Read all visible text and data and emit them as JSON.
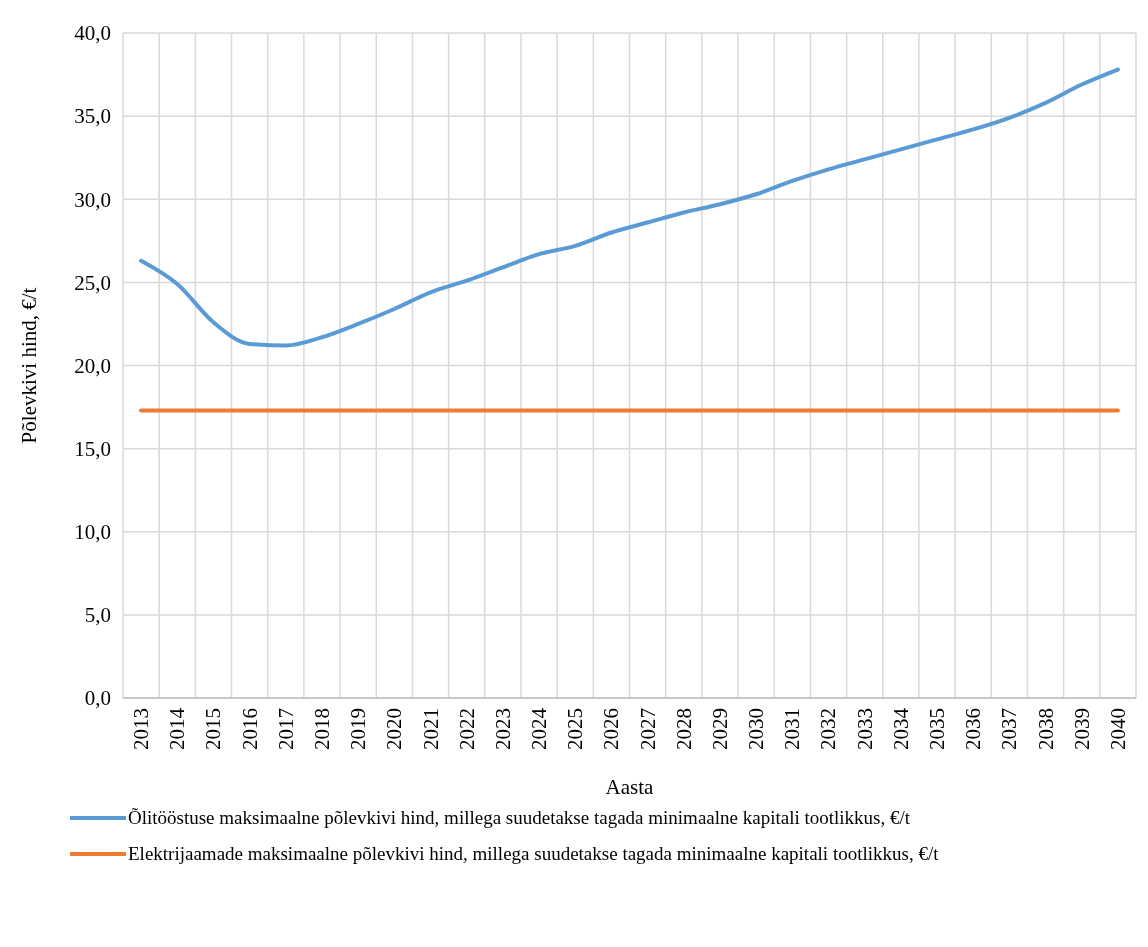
{
  "chart_data": {
    "type": "line",
    "xlabel": "Aasta",
    "ylabel": "Põlevkivi hind, €/t",
    "categories": [
      "2013",
      "2014",
      "2015",
      "2016",
      "2017",
      "2018",
      "2019",
      "2020",
      "2021",
      "2022",
      "2023",
      "2024",
      "2025",
      "2026",
      "2027",
      "2028",
      "2029",
      "2030",
      "2031",
      "2032",
      "2033",
      "2034",
      "2035",
      "2036",
      "2037",
      "2038",
      "2039",
      "2040"
    ],
    "series": [
      {
        "name": "Õlitööstuse maksimaalne põlevkivi hind, millega suudetakse tagada minimaalne kapitali tootlikkus, €/t",
        "color": "#5b9bd5",
        "values": [
          26.3,
          24.9,
          22.6,
          21.3,
          21.2,
          21.7,
          22.5,
          23.4,
          24.4,
          25.1,
          25.9,
          26.7,
          27.2,
          28.0,
          28.6,
          29.2,
          29.7,
          30.3,
          31.1,
          31.8,
          32.4,
          33.0,
          33.6,
          34.2,
          34.9,
          35.8,
          36.9,
          37.8
        ]
      },
      {
        "name": "Elektrijaamade maksimaalne põlevkivi hind, millega suudetakse tagada minimaalne kapitali tootlikkus, €/t",
        "color": "#ed7d31",
        "values": [
          17.3,
          17.3,
          17.3,
          17.3,
          17.3,
          17.3,
          17.3,
          17.3,
          17.3,
          17.3,
          17.3,
          17.3,
          17.3,
          17.3,
          17.3,
          17.3,
          17.3,
          17.3,
          17.3,
          17.3,
          17.3,
          17.3,
          17.3,
          17.3,
          17.3,
          17.3,
          17.3,
          17.3
        ]
      }
    ],
    "ylim": [
      0,
      40
    ],
    "yticks": [
      {
        "value": 0,
        "label": "0,0"
      },
      {
        "value": 5,
        "label": "5,0"
      },
      {
        "value": 10,
        "label": "10,0"
      },
      {
        "value": 15,
        "label": "15,0"
      },
      {
        "value": 20,
        "label": "20,0"
      },
      {
        "value": 25,
        "label": "25,0"
      },
      {
        "value": 30,
        "label": "30,0"
      },
      {
        "value": 35,
        "label": "35,0"
      },
      {
        "value": 40,
        "label": "40,0"
      }
    ],
    "grid": true,
    "legend": "bottom",
    "marker": "none",
    "line_style": "solid"
  }
}
